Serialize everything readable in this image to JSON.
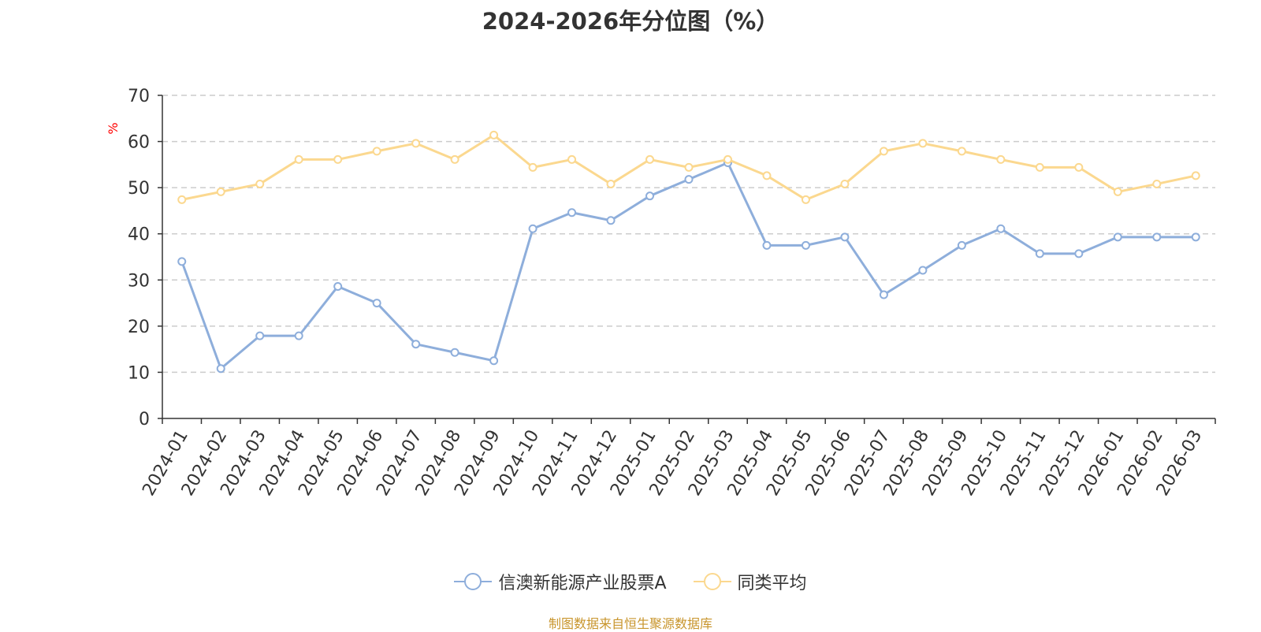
{
  "chart_data": {
    "type": "line",
    "title": "2024-2026年分位图（%）",
    "ylabel": "%",
    "xlabel": "",
    "ylim": [
      0,
      70
    ],
    "yticks": [
      0,
      10,
      20,
      30,
      40,
      50,
      60,
      70
    ],
    "grid": true,
    "legend_position": "bottom",
    "categories": [
      "2024-01",
      "2024-02",
      "2024-03",
      "2024-04",
      "2024-05",
      "2024-06",
      "2024-07",
      "2024-08",
      "2024-09",
      "2024-10",
      "2024-11",
      "2024-12",
      "2025-01",
      "2025-02",
      "2025-03",
      "2025-04",
      "2025-05",
      "2025-06",
      "2025-07",
      "2025-08",
      "2025-09",
      "2025-10",
      "2025-11",
      "2025-12",
      "2026-01",
      "2026-02",
      "2026-03"
    ],
    "series": [
      {
        "name": "信澳新能源产业股票A",
        "color": "#8eaedb",
        "values": [
          34.0,
          10.8,
          17.9,
          17.9,
          28.6,
          25.0,
          16.1,
          14.3,
          12.5,
          41.1,
          44.6,
          42.9,
          48.2,
          51.8,
          55.4,
          37.5,
          37.5,
          39.3,
          26.8,
          32.1,
          37.5,
          41.1,
          35.7,
          35.7,
          39.3,
          39.3,
          39.3
        ]
      },
      {
        "name": "同类平均",
        "color": "#fbd88f",
        "values": [
          47.4,
          49.1,
          50.8,
          56.1,
          56.1,
          57.9,
          59.6,
          56.1,
          61.4,
          54.4,
          56.1,
          50.8,
          56.1,
          54.4,
          56.1,
          52.6,
          47.4,
          50.8,
          57.9,
          59.6,
          57.9,
          56.1,
          54.4,
          54.4,
          49.1,
          50.8,
          52.6
        ]
      }
    ]
  },
  "source_note": "制图数据来自恒生聚源数据库",
  "colors": {
    "axis": "#333333",
    "grid": "#cccccc",
    "ylabel": "#ff0000",
    "source": "#c8952c"
  }
}
